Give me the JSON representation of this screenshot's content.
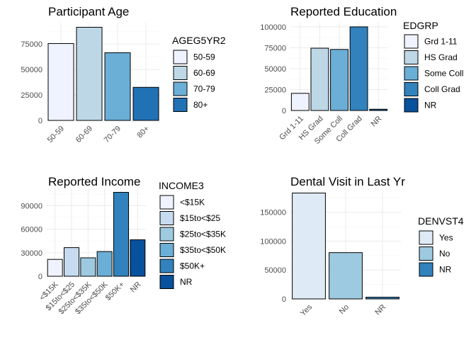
{
  "chart_data": [
    {
      "type": "bar",
      "title": "Participant Age",
      "legend_title": "AGEG5YR2",
      "legend_position": "right",
      "categories": [
        "50-59",
        "60-69",
        "70-79",
        "80+"
      ],
      "values": [
        75500,
        91500,
        66500,
        32500
      ],
      "colors": [
        "#eff3ff",
        "#bdd7e7",
        "#6baed6",
        "#2171b5"
      ],
      "yticks": [
        0,
        25000,
        50000,
        75000
      ],
      "ylim": [
        0,
        96000
      ],
      "grid": true
    },
    {
      "type": "bar",
      "title": "Reported Education",
      "legend_title": "EDGRP",
      "legend_position": "right",
      "categories": [
        "Grd 1-11",
        "HS Grad",
        "Some Coll",
        "Coll Grad",
        "NR"
      ],
      "values": [
        20500,
        74500,
        73000,
        100000,
        1500
      ],
      "colors": [
        "#eff3ff",
        "#bdd7e7",
        "#6baed6",
        "#3182bd",
        "#08519c"
      ],
      "yticks": [
        0,
        25000,
        50000,
        75000,
        100000
      ],
      "ylim": [
        0,
        105000
      ],
      "grid": true
    },
    {
      "type": "bar",
      "title": "Reported Income",
      "legend_title": "INCOME3",
      "legend_position": "right",
      "categories": [
        "<$15K",
        "$15to<$25",
        "$25to<$35K",
        "$35to<$50K",
        "$50K+",
        "NR"
      ],
      "values": [
        21500,
        36500,
        23500,
        31500,
        107000,
        46500
      ],
      "colors": [
        "#eff3ff",
        "#c6dbef",
        "#9ecae1",
        "#6baed6",
        "#3182bd",
        "#08519c"
      ],
      "yticks": [
        0,
        30000,
        60000,
        90000
      ],
      "ylim": [
        0,
        112000
      ],
      "grid": true
    },
    {
      "type": "bar",
      "title": "Dental Visit in Last Yr",
      "legend_title": "DENVST4",
      "legend_position": "right",
      "categories": [
        "Yes",
        "No",
        "NR"
      ],
      "values": [
        183000,
        80000,
        3000
      ],
      "colors": [
        "#deebf7",
        "#9ecae1",
        "#3182bd"
      ],
      "yticks": [
        0,
        50000,
        100000,
        150000
      ],
      "ylim": [
        0,
        191000
      ],
      "grid": true
    }
  ]
}
